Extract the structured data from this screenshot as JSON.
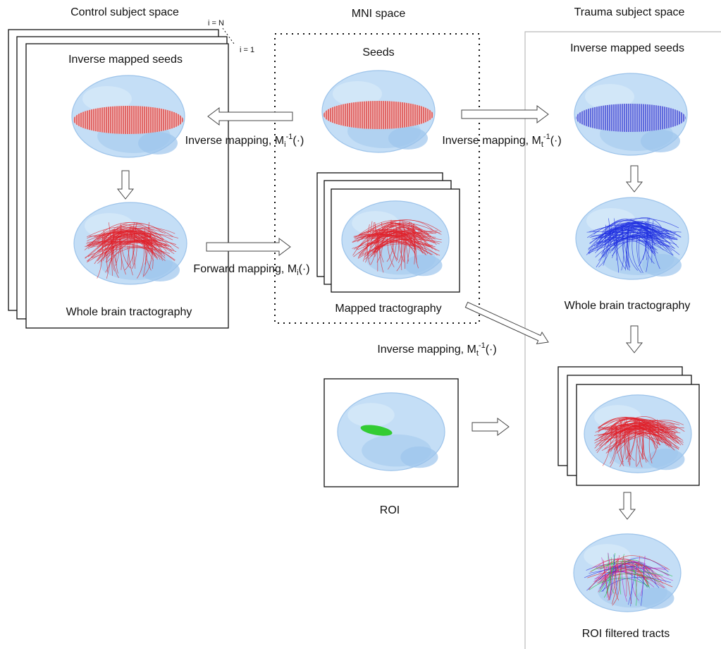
{
  "columns": {
    "control": {
      "title": "Control subject space",
      "stack_top": "i = N",
      "stack_bottom": "i = 1",
      "seeds_label": "Inverse mapped seeds",
      "tract_label": "Whole brain tractography"
    },
    "mni": {
      "title": "MNI space",
      "seeds_label": "Seeds",
      "tract_label": "Mapped tractography",
      "roi_label": "ROI"
    },
    "trauma": {
      "title": "Trauma  subject space",
      "seeds_label": "Inverse mapped seeds",
      "tract_label": "Whole brain tractography",
      "filtered_label": "ROI filtered tracts"
    }
  },
  "arrows": [
    {
      "text": "Inverse mapping, M",
      "subscript": "i",
      "superscript": "-1",
      "suffix": "(·)"
    },
    {
      "text": "Inverse mapping, M",
      "subscript": "t",
      "superscript": "-1",
      "suffix": "(·)"
    },
    {
      "text": "Forward mapping, M",
      "subscript": "i",
      "suffix": "(·)"
    },
    {
      "text": "Inverse mapping, M",
      "subscript": "t",
      "superscript": "-1",
      "suffix": "(·)"
    }
  ]
}
